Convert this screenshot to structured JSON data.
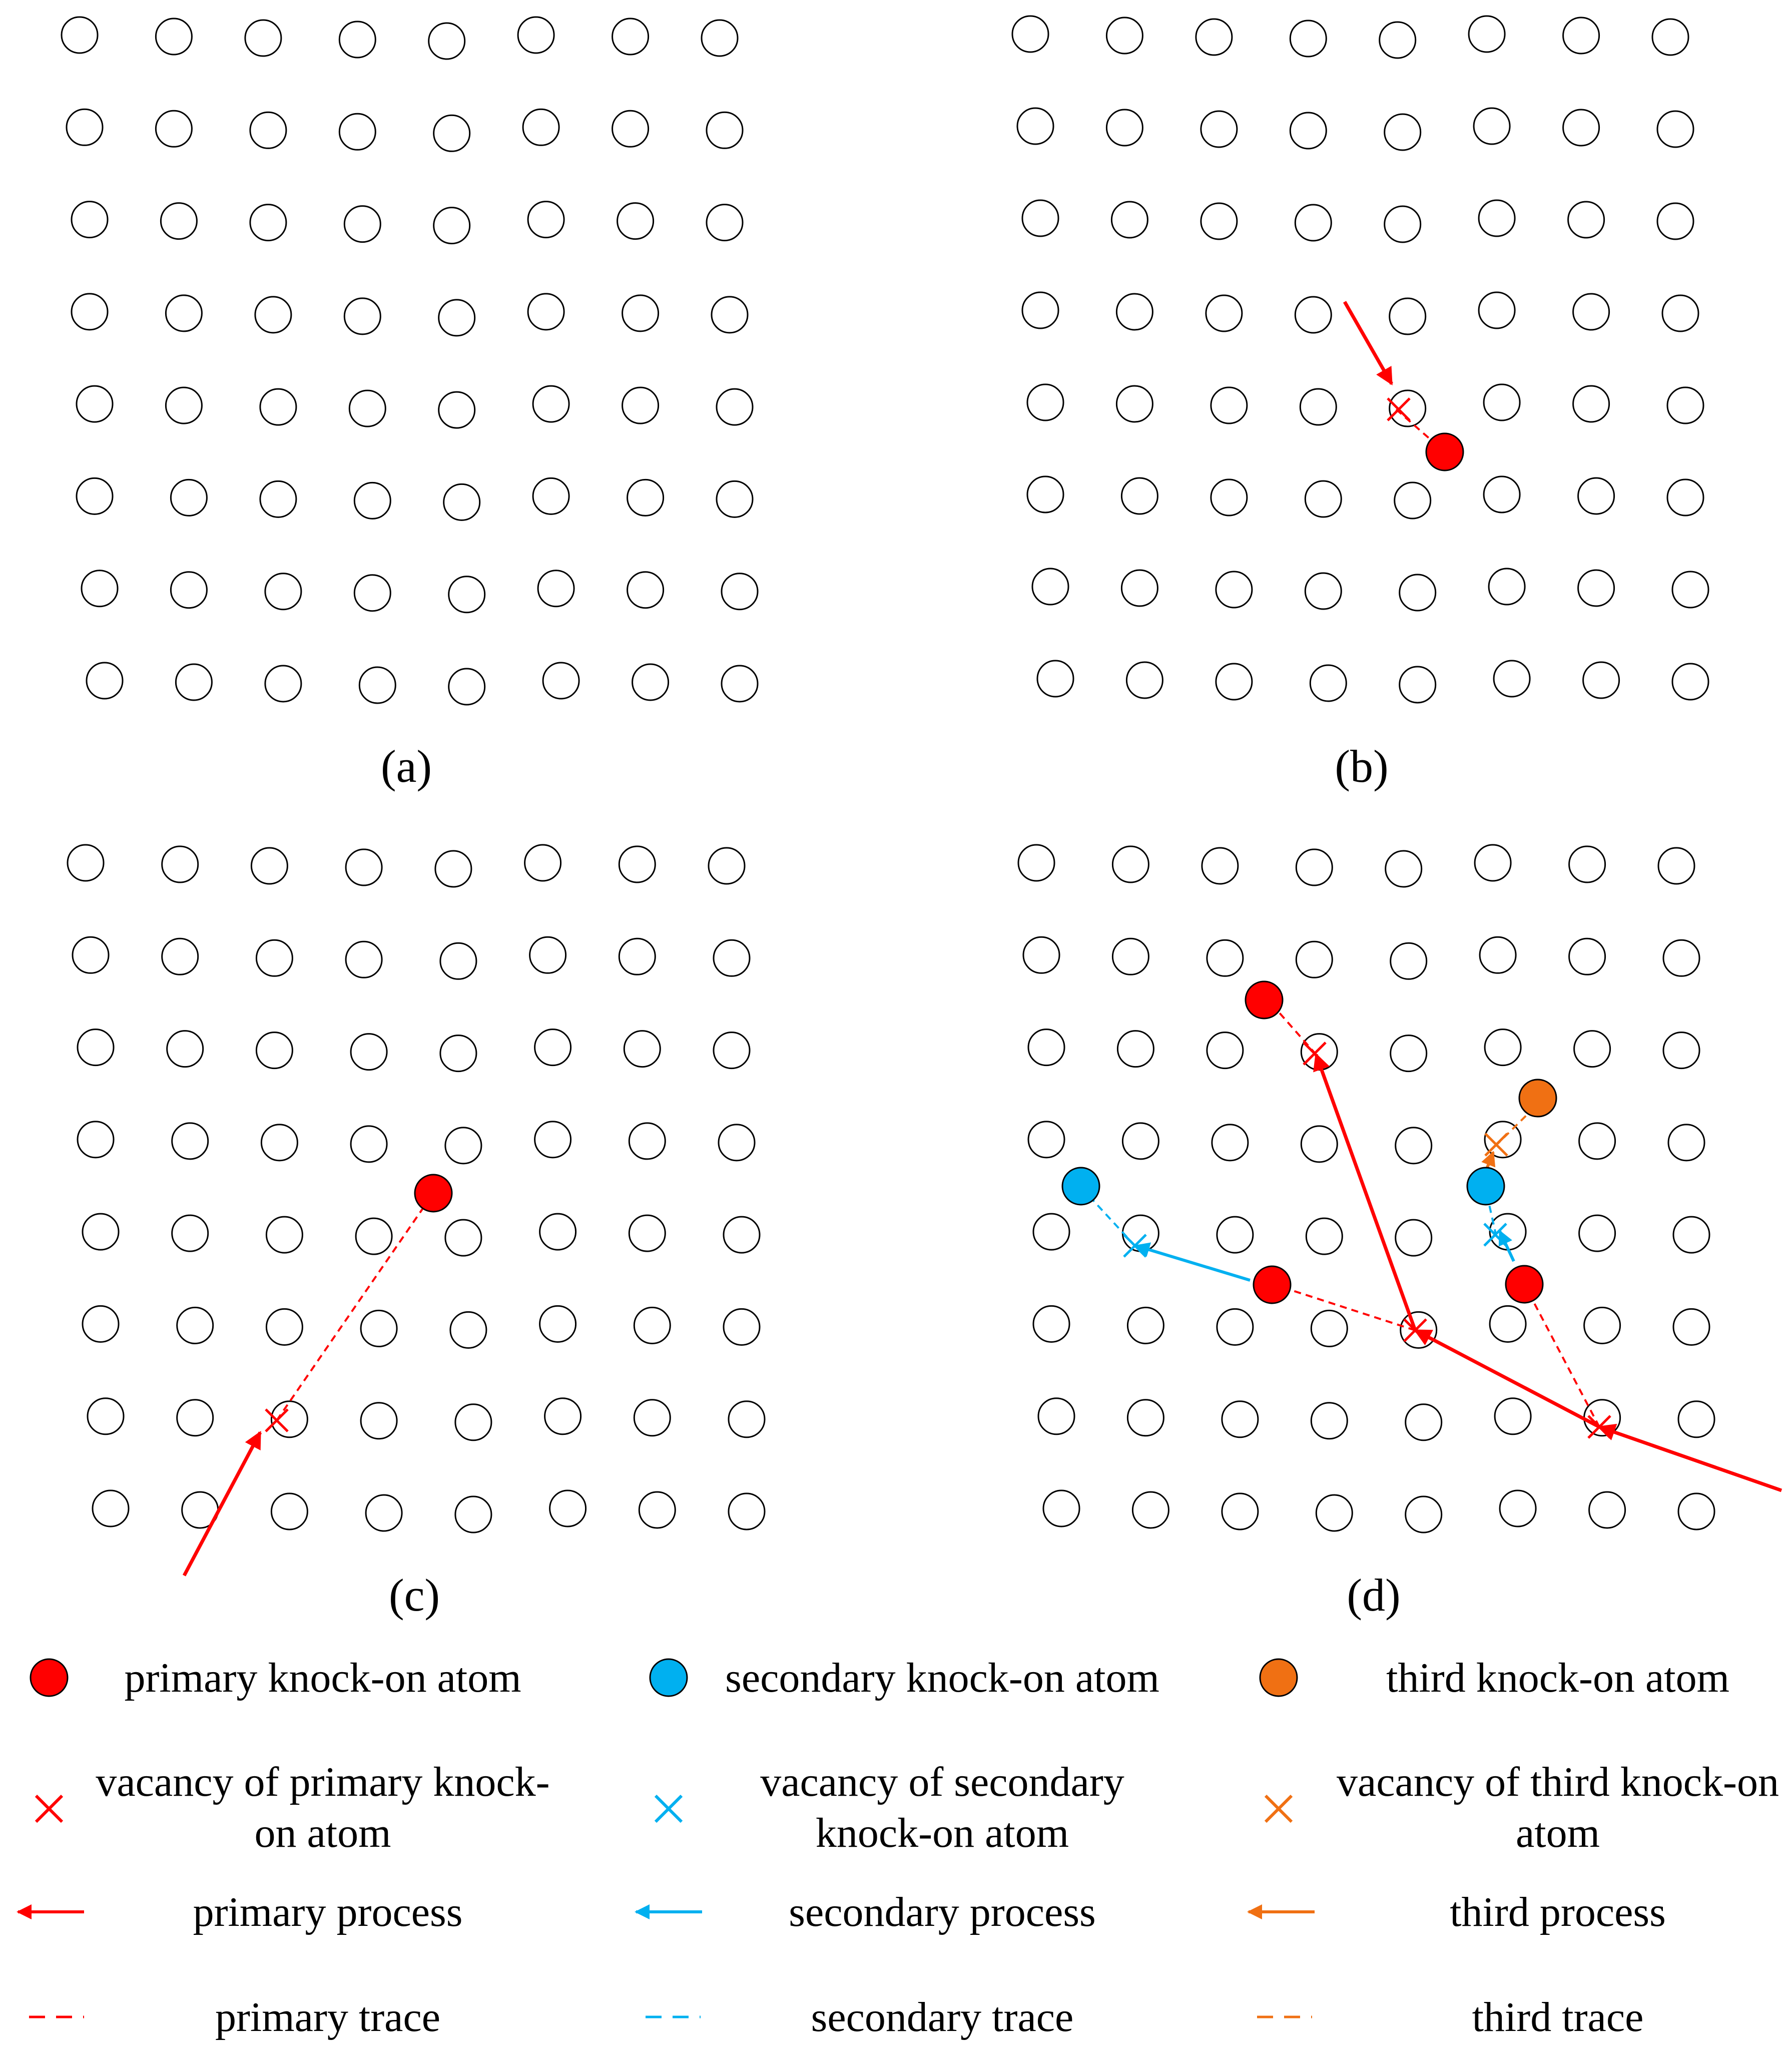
{
  "colors": {
    "primary": "#ff0000",
    "secondary": "#00b0f0",
    "third": "#f07013",
    "lattice_stroke": "#000000",
    "background": "#ffffff"
  },
  "panels": [
    {
      "label": "(a)",
      "events": "none"
    },
    {
      "label": "(b)",
      "events": "single primary knock-on"
    },
    {
      "label": "(c)",
      "events": "single primary knock-on"
    },
    {
      "label": "(d)",
      "events": "cascade with primary, secondary and third knock-on atoms"
    }
  ],
  "lattice": {
    "rows": 8,
    "columns": 8,
    "icon": "circle-outline-icon"
  },
  "legend": {
    "primary_atom": "primary knock-on atom",
    "secondary_atom": "secondary knock-on atom",
    "third_atom": "third knock-on atom",
    "primary_vacancy": [
      "vacancy of primary knock-",
      "on atom"
    ],
    "secondary_vacancy": [
      "vacancy of secondary",
      "knock-on atom"
    ],
    "third_vacancy": [
      "vacancy of third knock-on",
      "atom"
    ],
    "primary_process": "primary process",
    "secondary_process": "secondary process",
    "third_process": "third process",
    "primary_trace": "primary trace",
    "secondary_trace": "secondary trace",
    "third_trace": "third trace"
  }
}
